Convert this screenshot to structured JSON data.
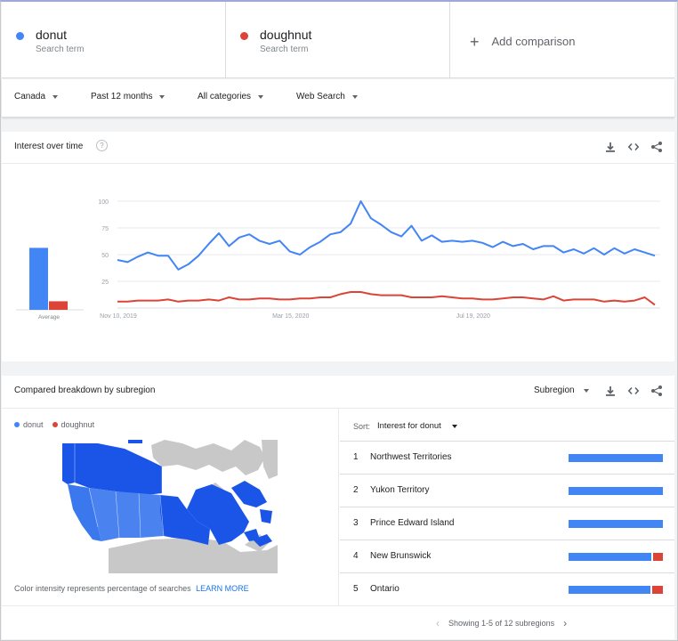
{
  "terms": [
    {
      "name": "donut",
      "sub": "Search term",
      "color": "#4285f4"
    },
    {
      "name": "doughnut",
      "sub": "Search term",
      "color": "#db4437"
    }
  ],
  "add_comparison": "Add comparison",
  "filters": {
    "location": "Canada",
    "time": "Past 12 months",
    "category": "All categories",
    "property": "Web Search"
  },
  "interest": {
    "title": "Interest over time",
    "help": "?",
    "average_label": "Average",
    "average_values": {
      "donut": 58,
      "doughnut": 8
    },
    "yticks": [
      "100",
      "75",
      "50",
      "25"
    ],
    "xticks": [
      "Nov 10, 2019",
      "Mar 15, 2020",
      "Jul 19, 2020"
    ]
  },
  "chart_data": {
    "type": "line",
    "x": [
      "Nov 10, 2019",
      "",
      "",
      "",
      "",
      "",
      "",
      "",
      "",
      "",
      "",
      "",
      "",
      "",
      "",
      "",
      "",
      "Mar 15, 2020",
      "",
      "",
      "",
      "",
      "",
      "",
      "",
      "",
      "",
      "",
      "",
      "",
      "",
      "",
      "",
      "",
      "",
      "Jul 19, 2020",
      "",
      "",
      "",
      "",
      "",
      "",
      "",
      "",
      "",
      "",
      "",
      "",
      "",
      "",
      "",
      "",
      "",
      ""
    ],
    "ylim": [
      0,
      100
    ],
    "series": [
      {
        "name": "donut",
        "color": "#4285f4",
        "values": [
          45,
          43,
          48,
          52,
          49,
          49,
          36,
          41,
          49,
          60,
          70,
          58,
          66,
          69,
          63,
          60,
          63,
          53,
          50,
          57,
          62,
          69,
          71,
          79,
          100,
          84,
          78,
          71,
          67,
          77,
          63,
          68,
          62,
          63,
          62,
          63,
          61,
          57,
          62,
          58,
          60,
          55,
          58,
          58,
          52,
          55,
          51,
          56,
          50,
          56,
          51,
          55,
          52,
          49
        ]
      },
      {
        "name": "doughnut",
        "color": "#db4437",
        "values": [
          6,
          6,
          7,
          7,
          7,
          8,
          6,
          7,
          7,
          8,
          7,
          10,
          8,
          8,
          9,
          9,
          8,
          8,
          9,
          9,
          10,
          10,
          13,
          15,
          15,
          13,
          12,
          12,
          12,
          10,
          10,
          10,
          11,
          10,
          9,
          9,
          8,
          8,
          9,
          10,
          10,
          9,
          8,
          11,
          7,
          8,
          8,
          8,
          6,
          7,
          6,
          7,
          10,
          3
        ]
      }
    ]
  },
  "breakdown": {
    "title": "Compared breakdown by subregion",
    "view": "Subregion",
    "legend": [
      "donut",
      "doughnut"
    ],
    "footer_text": "Color intensity represents percentage of searches",
    "learn_more": "LEARN MORE",
    "sort_label": "Sort:",
    "sort_value": "Interest for donut",
    "rows": [
      {
        "rank": "1",
        "name": "Northwest Territories",
        "donut": 100,
        "doughnut": 0
      },
      {
        "rank": "2",
        "name": "Yukon Territory",
        "donut": 100,
        "doughnut": 0
      },
      {
        "rank": "3",
        "name": "Prince Edward Island",
        "donut": 100,
        "doughnut": 0
      },
      {
        "rank": "4",
        "name": "New Brunswick",
        "donut": 88,
        "doughnut": 10
      },
      {
        "rank": "5",
        "name": "Ontario",
        "donut": 87,
        "doughnut": 11
      }
    ],
    "pagination": "Showing 1-5 of 12 subregions"
  }
}
